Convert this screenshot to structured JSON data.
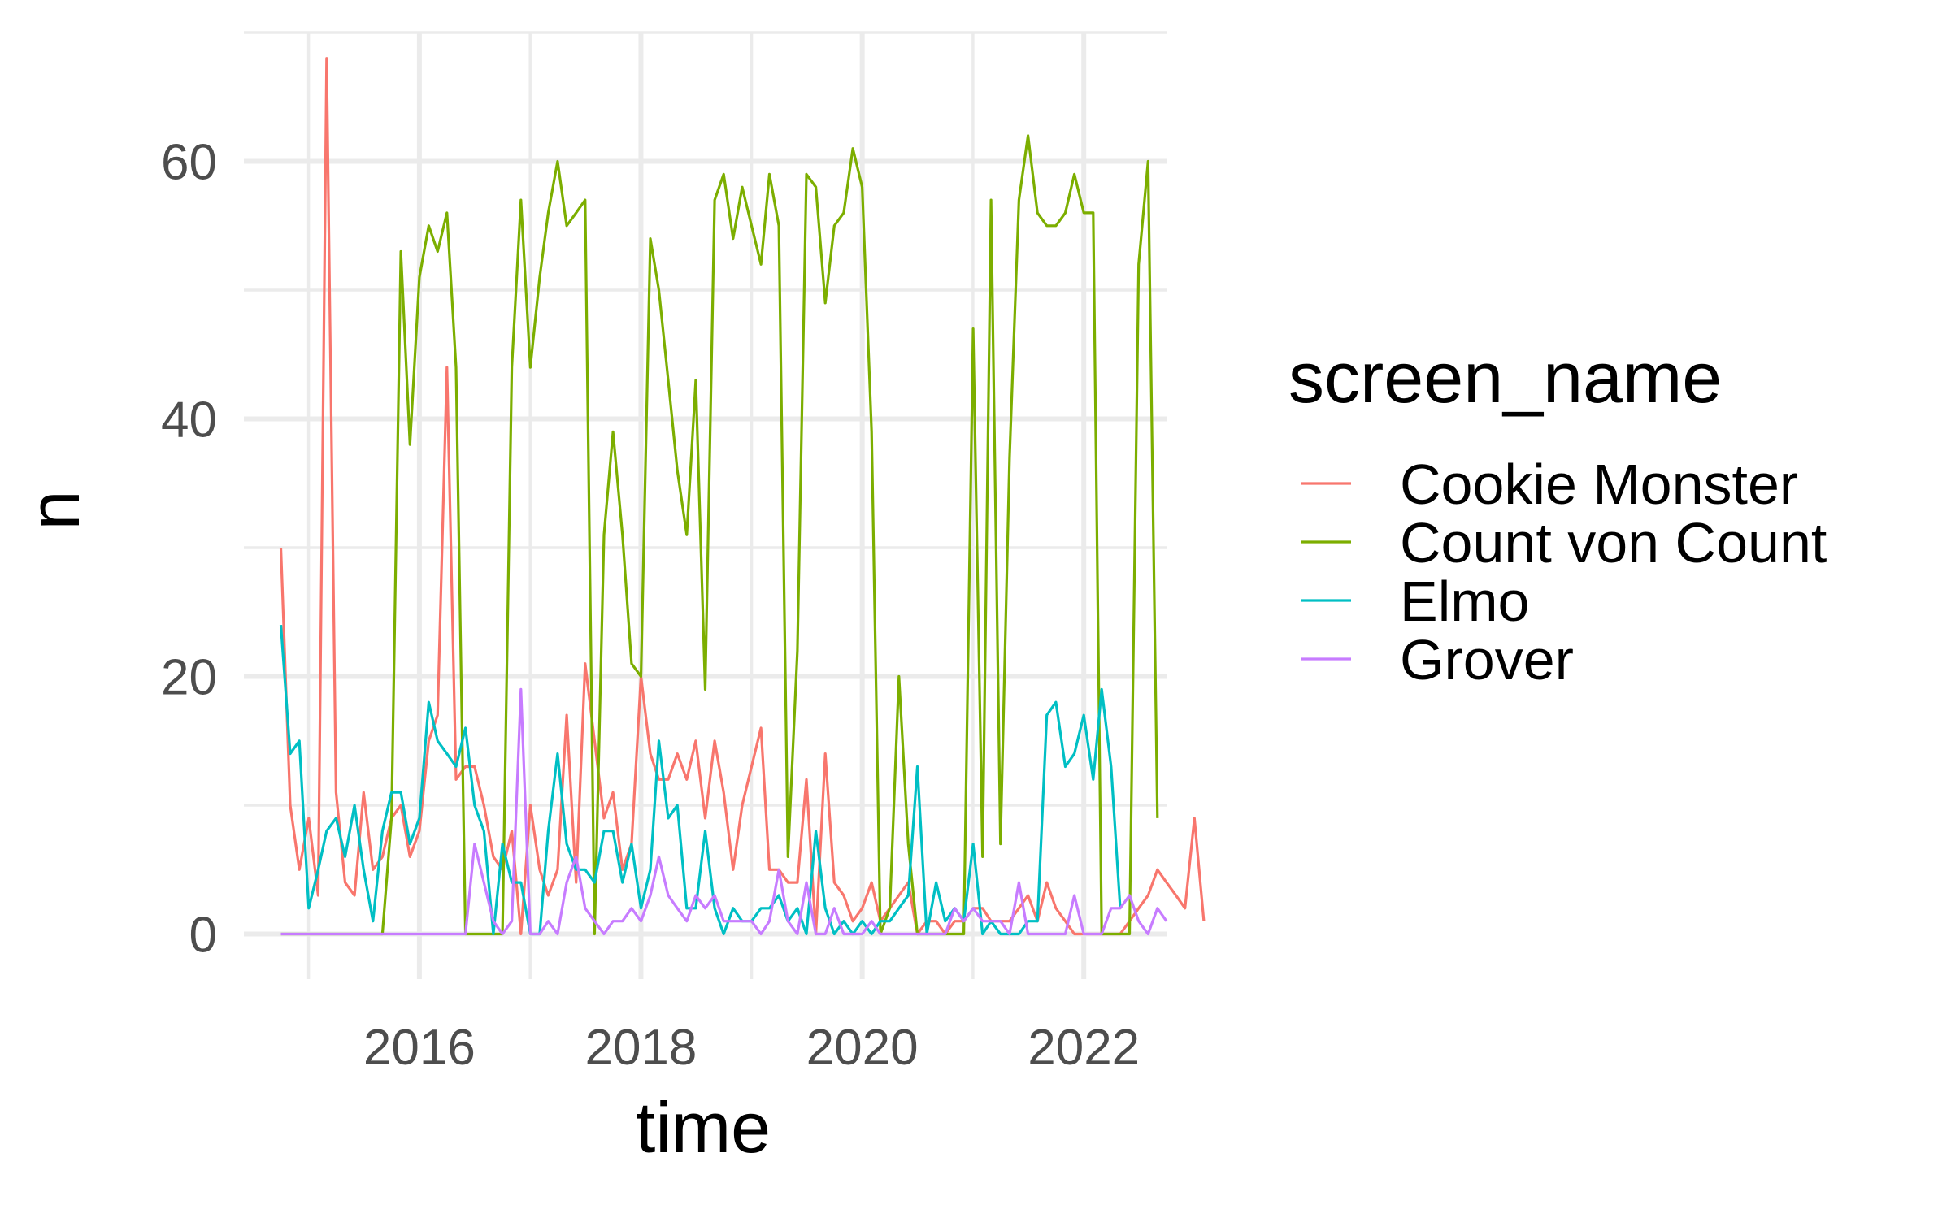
{
  "chart_data": {
    "type": "line",
    "xlabel": "time",
    "ylabel": "n",
    "xlim": [
      "2014-06-01",
      "2022-10-01"
    ],
    "ylim": [
      -3.5,
      70
    ],
    "x_ticks": [
      "2016-01-01",
      "2018-01-01",
      "2020-01-01",
      "2022-01-01"
    ],
    "x_tick_labels": [
      "2016",
      "2018",
      "2020",
      "2022"
    ],
    "y_ticks": [
      0,
      20,
      40,
      60
    ],
    "y_tick_labels": [
      "0",
      "20",
      "40",
      "60"
    ],
    "grid": true,
    "legend": {
      "title": "screen_name",
      "position": "right"
    },
    "x_start": "2014-10-01",
    "series": [
      {
        "name": "Cookie Monster",
        "color": "#F8766D",
        "values": [
          30,
          10,
          5,
          9,
          3,
          68,
          11,
          4,
          3,
          11,
          5,
          6,
          9,
          10,
          6,
          8,
          15,
          17,
          44,
          12,
          13,
          13,
          10,
          6,
          5,
          8,
          0,
          10,
          5,
          3,
          5,
          17,
          4,
          21,
          15,
          9,
          11,
          5,
          7,
          20,
          14,
          12,
          12,
          14,
          12,
          15,
          9,
          15,
          11,
          5,
          10,
          13,
          16,
          5,
          5,
          4,
          4,
          12,
          0,
          14,
          4,
          3,
          1,
          2,
          4,
          1,
          2,
          3,
          4,
          0,
          1,
          1,
          0,
          1,
          1,
          2,
          2,
          1,
          1,
          1,
          2,
          3,
          1,
          4,
          2,
          1,
          0,
          0,
          0,
          0,
          0,
          0,
          1,
          2,
          3,
          5,
          4,
          3,
          2,
          9,
          1
        ]
      },
      {
        "name": "Count von Count",
        "color": "#7CAE00",
        "values": [
          0,
          0,
          0,
          0,
          0,
          0,
          0,
          0,
          0,
          0,
          0,
          0,
          9,
          53,
          38,
          51,
          55,
          53,
          56,
          44,
          0,
          0,
          0,
          0,
          0,
          44,
          57,
          44,
          51,
          56,
          60,
          55,
          56,
          57,
          0,
          31,
          39,
          31,
          21,
          20,
          54,
          50,
          43,
          36,
          31,
          43,
          19,
          57,
          59,
          54,
          58,
          55,
          52,
          59,
          55,
          6,
          22,
          59,
          58,
          49,
          55,
          56,
          61,
          58,
          39,
          0,
          2,
          20,
          7,
          0,
          0,
          0,
          0,
          0,
          0,
          47,
          6,
          57,
          7,
          37,
          57,
          62,
          56,
          55,
          55,
          56,
          59,
          56,
          56,
          0,
          0,
          0,
          0,
          52,
          60,
          9
        ]
      },
      {
        "name": "Elmo",
        "color": "#00BFC4",
        "values": [
          24,
          14,
          15,
          2,
          5,
          8,
          9,
          6,
          10,
          5,
          1,
          8,
          11,
          11,
          7,
          9,
          18,
          15,
          14,
          13,
          16,
          10,
          8,
          0,
          7,
          4,
          4,
          0,
          0,
          8,
          14,
          7,
          5,
          5,
          4,
          8,
          8,
          4,
          7,
          2,
          5,
          15,
          9,
          10,
          2,
          2,
          8,
          2,
          0,
          2,
          1,
          1,
          2,
          2,
          3,
          1,
          2,
          0,
          8,
          2,
          0,
          1,
          0,
          1,
          0,
          1,
          1,
          2,
          3,
          13,
          0,
          4,
          1,
          2,
          1,
          7,
          0,
          1,
          0,
          0,
          0,
          1,
          1,
          17,
          18,
          13,
          14,
          17,
          12,
          19,
          13,
          2
        ]
      },
      {
        "name": "Grover",
        "color": "#C77CFF",
        "values": [
          0,
          0,
          0,
          0,
          0,
          0,
          0,
          0,
          0,
          0,
          0,
          0,
          0,
          0,
          0,
          0,
          0,
          0,
          0,
          0,
          0,
          7,
          4,
          1,
          0,
          1,
          19,
          0,
          0,
          1,
          0,
          4,
          6,
          2,
          1,
          0,
          1,
          1,
          2,
          1,
          3,
          6,
          3,
          2,
          1,
          3,
          2,
          3,
          1,
          1,
          1,
          1,
          0,
          1,
          5,
          1,
          0,
          4,
          0,
          0,
          2,
          0,
          0,
          0,
          1,
          0,
          0,
          0,
          0,
          0,
          0,
          0,
          0,
          2,
          1,
          2,
          1,
          1,
          1,
          0,
          4,
          0,
          0,
          0,
          0,
          0,
          3,
          0,
          0,
          0,
          2,
          2,
          3,
          1,
          0,
          2,
          1
        ]
      }
    ]
  }
}
